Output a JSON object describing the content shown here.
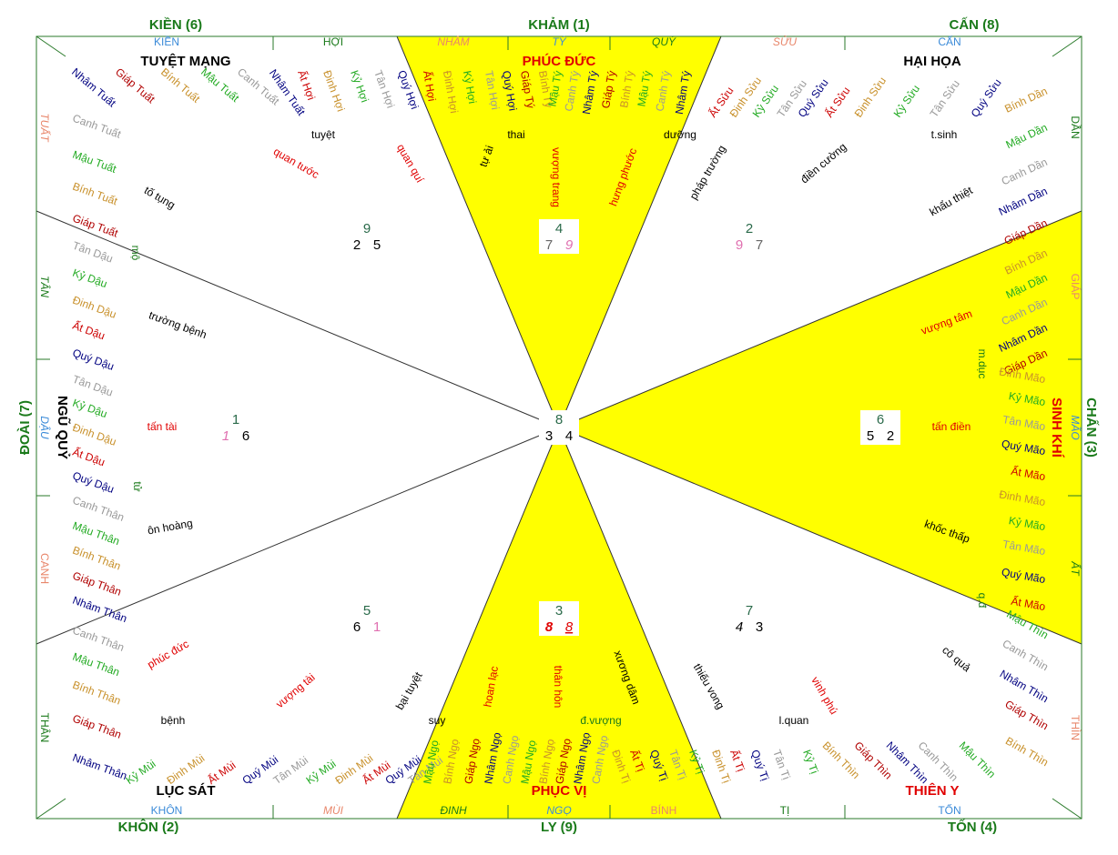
{
  "directions": [
    "KIỀN (6)",
    "KHẢM (1)",
    "CẤN (8)",
    "CHẤN (3)",
    "TỐN (4)",
    "LY (9)",
    "KHÔN (2)",
    "ĐOÀI (7)"
  ],
  "mountains": [
    "KIỀN",
    "HỢI",
    "NHÂM",
    "TÝ",
    "QUÝ",
    "SỬU",
    "CẤN",
    "DẦN",
    "GIÁP",
    "MÃO",
    "ẤT",
    "THÌN",
    "TỐN",
    "TỊ",
    "BÍNH",
    "NGỌ",
    "ĐINH",
    "MÙI",
    "KHÔN",
    "THÂN",
    "CANH",
    "DẬU",
    "TÂN",
    "TUẤT"
  ],
  "stars": [
    "TUYỆT MẠNG",
    "PHÚC ĐỨC",
    "HẠI HỌA",
    "SINH KHÍ",
    "THIÊN Y",
    "PHỤC VỊ",
    "LỤC SÁT",
    "NGŨ QUỶ"
  ],
  "palaces": [
    {
      "top": 9,
      "left": 2,
      "right": 5
    },
    {
      "top": 4,
      "left": 7,
      "right": 9
    },
    {
      "top": 2,
      "left": 9,
      "right": 7
    },
    {
      "top": 1,
      "left": 1,
      "right": 6
    },
    {
      "top": 8,
      "left": 3,
      "right": 4
    },
    {
      "top": 6,
      "left": 5,
      "right": 2
    },
    {
      "top": 5,
      "left": 6,
      "right": 1
    },
    {
      "top": 3,
      "left": 8,
      "right": 8
    },
    {
      "top": 7,
      "left": 4,
      "right": 3
    }
  ],
  "notes": [
    "tuyệt",
    "quan tước",
    "quan quí",
    "tố tụng",
    "tự ải",
    "thai",
    "vượng trang",
    "hưng phước",
    "dưỡng",
    "pháp trường",
    "điền cường",
    "t.sinh",
    "khẩu thiệt",
    "mộ",
    "trường bệnh",
    "tấn tài",
    "tử",
    "ôn hoàng",
    "phúc đức",
    "vượng tài",
    "bại tuyệt",
    "bệnh",
    "suy",
    "hoan lạc",
    "thân hôn",
    "xương dâm",
    "đ.vượng",
    "thiếu vong",
    "vinh phú",
    "l.quan",
    "cô quả",
    "vượng tâm",
    "m.dục",
    "tấn điền",
    "khốc thấp",
    "q.đ"
  ],
  "ganzhi": [
    "Nhâm Tuất",
    "Giáp Tuất",
    "Bính Tuất",
    "Mậu Tuất",
    "Canh Tuất",
    "Nhâm Tuất",
    "Ất Hợi",
    "Đinh Hợi",
    "Kỷ Hợi",
    "Tân Hợi",
    "Quý Hợi",
    "Canh Tuất",
    "Mậu Tuất",
    "Bính Tuất",
    "Giáp Tuất",
    "Tân Dậu",
    "Kỷ Dậu",
    "Đinh Dậu",
    "Ất Dậu",
    "Quý Dậu",
    "Tân Dậu",
    "Kỷ Dậu",
    "Đinh Dậu",
    "Ất Dậu",
    "Quý Dậu",
    "Canh Thân",
    "Mậu Thân",
    "Bính Thân",
    "Giáp Thân",
    "Nhâm Thân",
    "Canh Thân",
    "Mậu Thân",
    "Bính Thân",
    "Giáp Thân",
    "Nhâm Thân",
    "Kỷ Mùi",
    "Đinh Mùi",
    "Ất Mùi",
    "Quý Mùi",
    "Tân Mùi",
    "Kỷ Mùi",
    "Đinh Mùi",
    "Ất Mùi",
    "Quý Mùi",
    "Tân Mùi",
    "Mậu Ngọ",
    "Bính Ngọ",
    "Giáp Ngọ",
    "Nhâm Ngọ",
    "Canh Ngọ",
    "Mậu Ngọ",
    "Bính Ngọ",
    "Giáp Ngọ",
    "Nhâm Ngọ",
    "Canh Ngọ",
    "Đinh Tị",
    "Ất Tị",
    "Quý Tị",
    "Tân Tị",
    "Kỷ Tị",
    "Đinh Tị",
    "Ất Tị",
    "Quý Tị",
    "Tân Tị",
    "Kỷ Tị",
    "Bính Thìn",
    "Giáp Thìn",
    "Nhâm Thìn",
    "Canh Thìn",
    "Mậu Thìn",
    "Bính Dần",
    "Mậu Dần",
    "Canh Dần",
    "Nhâm Dần",
    "Giáp Dần",
    "Bính Dần",
    "Mậu Dần",
    "Canh Dần",
    "Nhâm Dần",
    "Giáp Dần",
    "Đinh Mão",
    "Kỷ Mão",
    "Tân Mão",
    "Quý Mão",
    "Ất Mão",
    "Đinh Mão",
    "Kỷ Mão",
    "Tân Mão",
    "Quý Mão",
    "Ất Mão",
    "Mậu Thìn",
    "Canh Thìn",
    "Nhâm Thìn",
    "Giáp Thìn",
    "Bính Thìn",
    "Ất Sửu",
    "Đinh Sửu",
    "Kỷ Sửu",
    "Tân Sửu",
    "Quý Sửu",
    "Ất Sửu",
    "Đinh Sửu",
    "Kỷ Sửu",
    "Tân Sửu",
    "Quý Sửu",
    "Ất Hợi",
    "Đinh Hợi",
    "Kỷ Hợi",
    "Tân Hợi",
    "Quý Hợi",
    "Giáp Tý",
    "Bính Tý",
    "Mậu Tý",
    "Canh Tý",
    "Nhâm Tý",
    "Giáp Tý",
    "Bính Tý",
    "Mậu Tý",
    "Canh Tý",
    "Nhâm Tý"
  ]
}
